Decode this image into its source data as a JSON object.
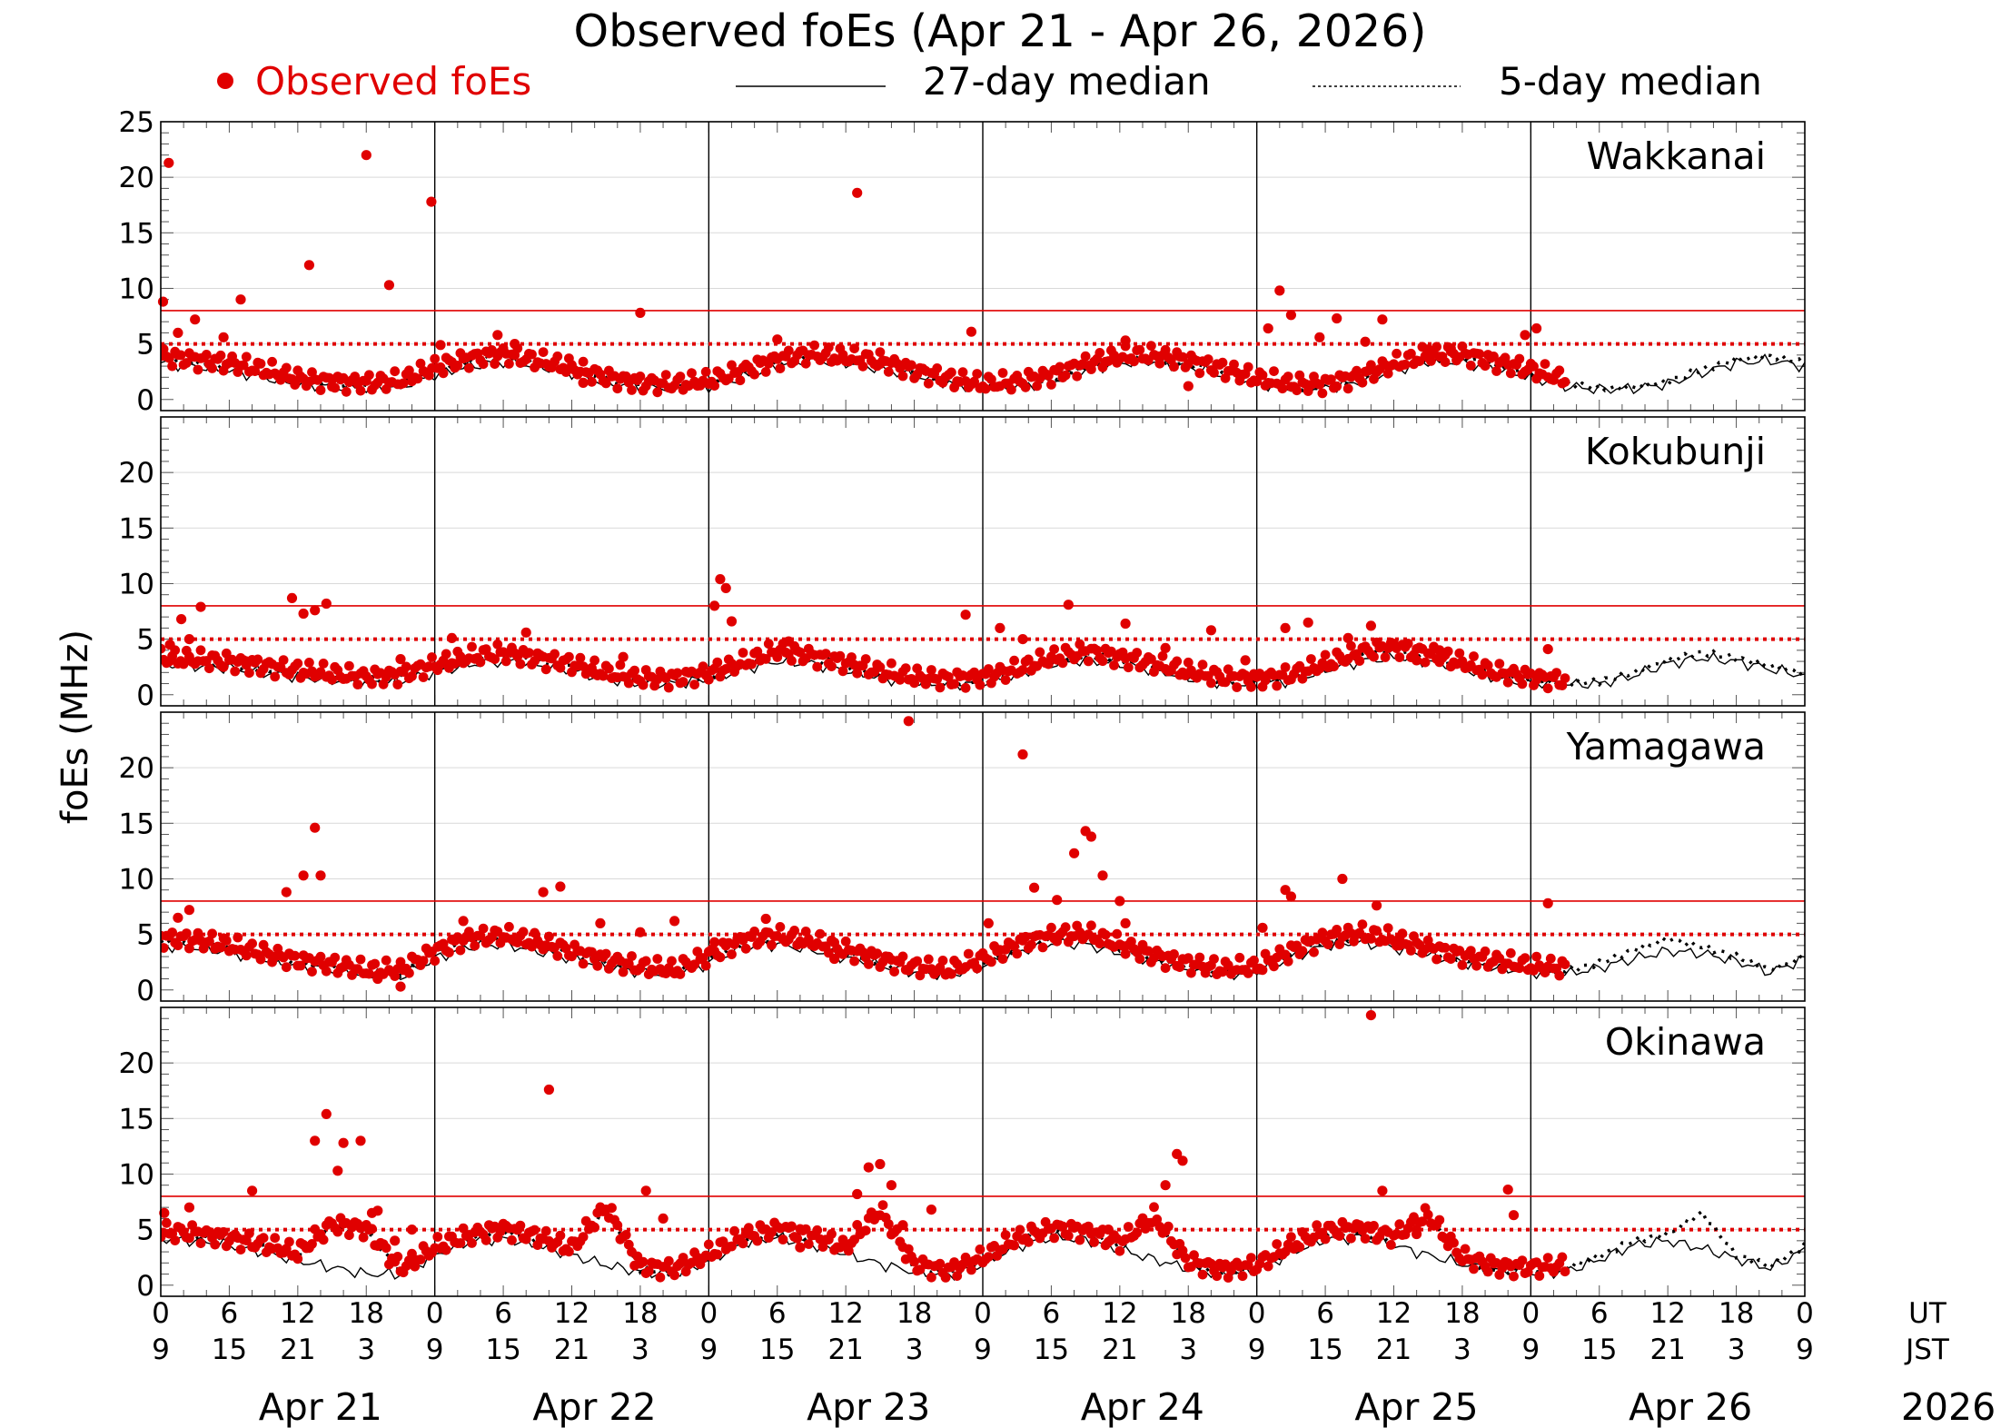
{
  "chart_data": {
    "type": "scatter",
    "title": "Observed foEs (Apr 21 - Apr 26, 2026)",
    "ylabel": "foEs (MHz)",
    "year": "2026",
    "legend": [
      {
        "label": "Observed foEs",
        "style": "dot",
        "color": "#e00000"
      },
      {
        "label": "27-day median",
        "style": "solid-line",
        "color": "#000000"
      },
      {
        "label": "5-day median",
        "style": "dotted-line",
        "color": "#000000"
      }
    ],
    "reference_lines": {
      "solid_red_MHz": 8,
      "dotted_red_MHz": 5
    },
    "ylim": [
      -1,
      25
    ],
    "x_range_hours": [
      0,
      144
    ],
    "x_ticks_hours": [
      0,
      6,
      12,
      18,
      24,
      30,
      36,
      42,
      48,
      54,
      60,
      66,
      72,
      78,
      84,
      90,
      96,
      102,
      108,
      114,
      120,
      126,
      132,
      138,
      144
    ],
    "ut_labels": [
      "0",
      "6",
      "12",
      "18",
      "0",
      "6",
      "12",
      "18",
      "0",
      "6",
      "12",
      "18",
      "0",
      "6",
      "12",
      "18",
      "0",
      "6",
      "12",
      "18",
      "0",
      "6",
      "12",
      "18",
      "0"
    ],
    "jst_labels": [
      "9",
      "15",
      "21",
      "3",
      "9",
      "15",
      "21",
      "3",
      "9",
      "15",
      "21",
      "3",
      "9",
      "15",
      "21",
      "3",
      "9",
      "15",
      "21",
      "3",
      "9",
      "15",
      "21",
      "3",
      "9"
    ],
    "ut_label": "UT",
    "jst_label": "JST",
    "days": [
      "Apr 21",
      "Apr 22",
      "Apr 23",
      "Apr 24",
      "Apr 25",
      "Apr 26"
    ],
    "observed_until_hour": 123,
    "stations": [
      {
        "name": "Wakkanai",
        "y_ticks": [
          0,
          5,
          10,
          15,
          20,
          25
        ],
        "median27_hours": [
          0,
          3,
          6,
          9,
          12,
          15,
          18,
          21,
          24,
          27,
          30,
          33,
          36,
          39,
          42,
          45,
          48,
          51,
          54,
          57,
          60,
          63,
          66,
          69,
          72,
          75,
          78,
          81,
          84,
          87,
          90,
          93,
          96,
          99,
          102,
          105,
          108,
          111,
          114,
          117,
          120,
          123,
          126,
          129,
          132,
          135,
          138,
          141,
          144
        ],
        "median27_values": [
          3.3,
          3.0,
          2.6,
          2.0,
          1.4,
          1.2,
          1.0,
          1.2,
          2.2,
          3.0,
          3.4,
          3.0,
          2.4,
          1.5,
          1.1,
          1.0,
          1.2,
          2.0,
          3.0,
          3.5,
          3.3,
          2.8,
          2.1,
          1.4,
          1.0,
          1.1,
          1.6,
          2.6,
          3.3,
          3.4,
          2.9,
          2.2,
          1.4,
          1.0,
          1.0,
          1.6,
          2.6,
          3.4,
          3.3,
          2.7,
          2.0,
          1.2,
          0.9,
          1.0,
          1.4,
          2.4,
          3.3,
          3.5,
          3.0
        ],
        "median5_values": [
          3.6,
          3.3,
          3.0,
          2.4,
          1.6,
          1.3,
          1.2,
          1.4,
          2.6,
          3.4,
          3.8,
          3.2,
          2.6,
          1.7,
          1.2,
          1.1,
          1.4,
          2.3,
          3.3,
          3.8,
          3.5,
          3.2,
          2.3,
          1.6,
          1.1,
          1.3,
          1.9,
          2.9,
          3.6,
          3.7,
          3.2,
          2.5,
          1.6,
          1.1,
          1.1,
          1.8,
          2.9,
          3.7,
          3.8,
          3.1,
          2.4,
          1.5,
          1.0,
          1.1,
          1.6,
          2.7,
          3.6,
          3.9,
          3.3
        ],
        "observed_hours": [
          0.2,
          0.7,
          1.5,
          3.0,
          5.5,
          7.0,
          11.8,
          13.0,
          15.0,
          18.0,
          20.0,
          23.7,
          24.5,
          29.5,
          31.0,
          37.0,
          42.0,
          54.0,
          61.0,
          63.0,
          71.0,
          84.5,
          90.0,
          97.0,
          98.0,
          99.0,
          101.5,
          103.0,
          105.5,
          107.0,
          111.0,
          113.0,
          119.5,
          120.5
        ],
        "observed_values": [
          8.8,
          21.3,
          6.0,
          7.2,
          5.6,
          9.0,
          1.6,
          12.1,
          1.8,
          22.0,
          10.3,
          17.8,
          4.9,
          5.8,
          5.0,
          1.5,
          7.8,
          5.4,
          18.6,
          3.2,
          6.1,
          5.3,
          1.2,
          6.4,
          9.8,
          7.6,
          5.6,
          7.3,
          5.2,
          7.2,
          4.5,
          4.6,
          5.8,
          6.4
        ]
      },
      {
        "name": "Kokubunji",
        "y_ticks": [
          0,
          5,
          10,
          15,
          20
        ],
        "median27_hours": [
          0,
          3,
          6,
          9,
          12,
          15,
          18,
          21,
          24,
          27,
          30,
          33,
          36,
          39,
          42,
          45,
          48,
          51,
          54,
          57,
          60,
          63,
          66,
          69,
          72,
          75,
          78,
          81,
          84,
          87,
          90,
          93,
          96,
          99,
          102,
          105,
          108,
          111,
          114,
          117,
          120,
          123,
          126,
          129,
          132,
          135,
          138,
          141,
          144
        ],
        "median27_values": [
          2.7,
          2.6,
          2.4,
          2.0,
          1.6,
          1.3,
          1.1,
          1.2,
          2.0,
          2.7,
          3.0,
          2.7,
          2.2,
          1.4,
          1.0,
          1.0,
          1.4,
          2.3,
          3.0,
          2.8,
          2.2,
          1.5,
          1.1,
          0.9,
          1.1,
          1.8,
          2.8,
          3.1,
          2.8,
          2.2,
          1.5,
          1.1,
          0.9,
          1.3,
          2.2,
          3.0,
          3.4,
          3.0,
          2.3,
          1.5,
          1.1,
          0.9,
          1.0,
          1.7,
          2.8,
          3.3,
          3.0,
          2.3,
          1.7
        ],
        "median5_values": [
          3.0,
          2.9,
          2.7,
          2.3,
          1.9,
          1.6,
          1.3,
          1.5,
          2.4,
          3.1,
          3.5,
          3.0,
          2.5,
          1.7,
          1.2,
          1.2,
          1.7,
          2.6,
          3.7,
          3.2,
          2.6,
          1.8,
          1.3,
          1.1,
          1.3,
          2.0,
          3.0,
          3.6,
          3.1,
          2.5,
          1.8,
          1.3,
          1.1,
          1.5,
          2.5,
          3.5,
          4.0,
          3.4,
          2.6,
          1.7,
          1.3,
          1.0,
          1.2,
          2.0,
          3.1,
          3.8,
          3.3,
          2.6,
          1.9
        ],
        "observed_hours": [
          0.8,
          1.8,
          2.5,
          3.5,
          7.5,
          11.5,
          12.5,
          13.5,
          14.5,
          21.0,
          25.5,
          32.0,
          38.0,
          40.5,
          48.5,
          49.0,
          49.5,
          50.0,
          55.0,
          70.5,
          73.5,
          75.5,
          79.5,
          84.5,
          88.0,
          92.0,
          95.0,
          98.5,
          100.5,
          104.0,
          106.0,
          110.0,
          112.0,
          118.5,
          121.5
        ],
        "observed_values": [
          4.5,
          6.8,
          5.0,
          7.9,
          3.0,
          8.7,
          7.3,
          7.6,
          8.2,
          3.2,
          5.1,
          5.6,
          1.9,
          3.4,
          8.0,
          10.4,
          9.6,
          6.6,
          4.8,
          7.2,
          6.0,
          5.0,
          8.1,
          6.4,
          4.2,
          5.8,
          3.1,
          6.0,
          6.5,
          5.1,
          6.2,
          3.1,
          4.0,
          2.2,
          4.1
        ]
      },
      {
        "name": "Yamagawa",
        "y_ticks": [
          0,
          5,
          10,
          15,
          20
        ],
        "median27_hours": [
          0,
          3,
          6,
          9,
          12,
          15,
          18,
          21,
          24,
          27,
          30,
          33,
          36,
          39,
          42,
          45,
          48,
          51,
          54,
          57,
          60,
          63,
          66,
          69,
          72,
          75,
          78,
          81,
          84,
          87,
          90,
          93,
          96,
          99,
          102,
          105,
          108,
          111,
          114,
          117,
          120,
          123,
          126,
          129,
          132,
          135,
          138,
          141,
          144
        ],
        "median27_values": [
          4.0,
          3.8,
          3.4,
          2.8,
          2.2,
          1.8,
          1.4,
          1.2,
          2.8,
          3.9,
          4.1,
          3.5,
          2.8,
          2.1,
          1.6,
          1.3,
          2.4,
          3.8,
          4.1,
          3.6,
          2.9,
          2.2,
          1.6,
          1.3,
          2.1,
          3.4,
          4.2,
          4.1,
          3.3,
          2.5,
          1.9,
          1.4,
          1.6,
          2.9,
          4.0,
          4.3,
          3.8,
          3.1,
          2.5,
          2.0,
          1.6,
          1.4,
          2.0,
          2.8,
          3.5,
          3.3,
          2.6,
          1.6,
          2.8
        ],
        "median5_values": [
          4.4,
          4.2,
          3.7,
          3.0,
          2.4,
          2.0,
          1.5,
          1.5,
          3.2,
          4.4,
          4.6,
          4.0,
          3.2,
          2.4,
          1.8,
          1.5,
          2.8,
          4.2,
          4.6,
          4.1,
          3.3,
          2.5,
          1.8,
          1.5,
          2.5,
          3.8,
          4.6,
          4.8,
          3.8,
          2.8,
          2.1,
          1.6,
          1.8,
          3.2,
          4.4,
          4.8,
          4.3,
          3.5,
          2.8,
          2.3,
          1.9,
          1.7,
          2.4,
          3.6,
          4.6,
          3.9,
          3.0,
          1.8,
          3.0
        ],
        "observed_hours": [
          1.5,
          2.5,
          11.0,
          12.5,
          13.5,
          14.0,
          19.0,
          21.0,
          26.5,
          33.5,
          35.0,
          38.5,
          42.0,
          45.0,
          48.5,
          53.0,
          59.0,
          65.5,
          72.5,
          75.5,
          76.5,
          78.5,
          80.0,
          81.0,
          81.5,
          82.5,
          84.0,
          84.5,
          88.5,
          96.5,
          98.5,
          99.0,
          103.5,
          106.5,
          108.5,
          121.5
        ],
        "observed_values": [
          6.5,
          7.2,
          8.8,
          10.3,
          14.6,
          10.3,
          1.0,
          0.3,
          6.2,
          8.8,
          9.3,
          6.0,
          5.2,
          6.2,
          4.3,
          6.4,
          2.8,
          24.2,
          6.0,
          21.2,
          9.2,
          8.1,
          12.3,
          14.3,
          13.8,
          10.3,
          8.0,
          6.0,
          2.8,
          5.6,
          9.0,
          8.4,
          10.0,
          7.6,
          4.0,
          7.8
        ]
      },
      {
        "name": "Okinawa",
        "y_ticks": [
          0,
          5,
          10,
          15,
          20
        ],
        "median27_hours": [
          0,
          3,
          6,
          9,
          12,
          15,
          18,
          21,
          24,
          27,
          30,
          33,
          36,
          39,
          42,
          45,
          48,
          51,
          54,
          57,
          60,
          63,
          66,
          69,
          72,
          75,
          78,
          81,
          84,
          87,
          90,
          93,
          96,
          99,
          102,
          105,
          108,
          111,
          114,
          117,
          120,
          123,
          126,
          129,
          132,
          135,
          138,
          141,
          144
        ],
        "median27_values": [
          4.2,
          4.0,
          3.6,
          3.0,
          2.2,
          1.6,
          1.0,
          1.0,
          2.7,
          3.9,
          4.2,
          3.6,
          2.7,
          1.8,
          1.2,
          1.0,
          2.2,
          3.8,
          4.3,
          3.7,
          2.8,
          1.9,
          1.2,
          0.9,
          1.9,
          3.5,
          4.3,
          4.1,
          3.2,
          2.3,
          1.5,
          1.0,
          1.3,
          2.9,
          4.1,
          4.3,
          3.6,
          2.7,
          1.9,
          1.3,
          1.1,
          1.2,
          2.3,
          3.6,
          4.0,
          3.3,
          2.4,
          1.5,
          3.2
        ],
        "median5_values": [
          4.5,
          4.4,
          3.9,
          3.4,
          2.6,
          5.2,
          4.8,
          1.2,
          3.1,
          4.2,
          4.8,
          4.1,
          3.0,
          6.8,
          1.4,
          1.2,
          2.5,
          4.1,
          4.8,
          4.2,
          3.1,
          6.5,
          1.6,
          1.0,
          2.2,
          3.9,
          4.8,
          4.6,
          3.5,
          5.9,
          1.8,
          1.1,
          1.5,
          3.3,
          4.6,
          4.8,
          4.1,
          6.0,
          2.2,
          1.4,
          1.3,
          1.5,
          2.6,
          4.0,
          4.6,
          6.5,
          2.7,
          1.7,
          3.6
        ],
        "observed_hours": [
          0.3,
          2.5,
          8.0,
          13.5,
          14.5,
          15.5,
          16.0,
          17.5,
          18.5,
          19.0,
          20.5,
          22.0,
          34.0,
          42.5,
          44.0,
          56.0,
          61.0,
          62.0,
          63.0,
          64.0,
          65.0,
          67.5,
          83.0,
          88.0,
          89.0,
          89.5,
          106.0,
          107.0,
          110.0,
          118.0,
          118.5
        ],
        "observed_values": [
          6.5,
          7.0,
          8.5,
          13.0,
          15.4,
          10.3,
          12.8,
          13.0,
          6.5,
          6.7,
          4.0,
          5.0,
          17.6,
          8.5,
          6.0,
          3.4,
          8.2,
          10.6,
          10.9,
          9.0,
          5.4,
          6.8,
          5.0,
          9.0,
          11.8,
          11.2,
          24.3,
          8.5,
          4.6,
          8.6,
          6.3
        ]
      }
    ]
  }
}
